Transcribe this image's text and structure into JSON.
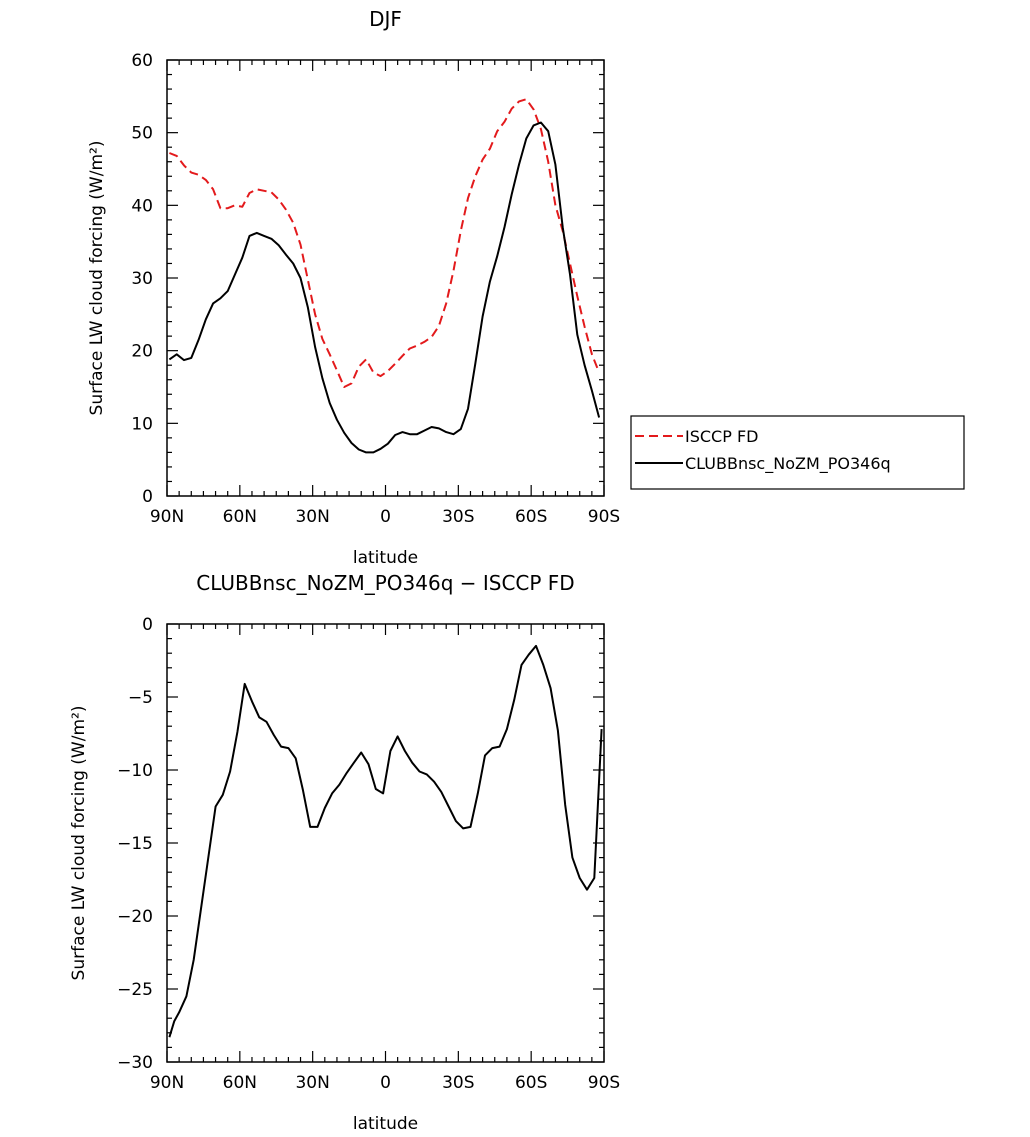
{
  "colors": {
    "observed": "#e31a1c",
    "model": "#000000",
    "axis": "#000000"
  },
  "chart_data": [
    {
      "type": "line",
      "title": "DJF",
      "xlabel": "latitude",
      "ylabel": "Surface LW cloud forcing (W/m²)",
      "xlim": [
        90,
        -90
      ],
      "ylim": [
        0,
        60
      ],
      "xticks": [
        90,
        60,
        30,
        0,
        -30,
        -60,
        -90
      ],
      "xtick_labels": [
        "90N",
        "60N",
        "30N",
        "0",
        "30S",
        "60S",
        "90S"
      ],
      "yticks": [
        0,
        10,
        20,
        30,
        40,
        50,
        60
      ],
      "ytick_labels": [
        "0",
        "10",
        "20",
        "30",
        "40",
        "50",
        "60"
      ],
      "legend_position": "right",
      "series": [
        {
          "name": "ISCCP FD",
          "color": "#e31a1c",
          "dash": "dashed",
          "x": [
            89,
            86,
            83,
            80,
            77,
            74,
            71,
            68,
            65,
            62,
            59,
            56,
            53,
            50,
            47,
            44,
            41,
            38,
            35,
            32,
            29,
            26,
            23,
            20,
            17,
            14,
            11,
            8,
            5,
            2,
            -1,
            -4,
            -7,
            -10,
            -13,
            -16,
            -19,
            -22,
            -25,
            -28,
            -31,
            -34,
            -37,
            -40,
            -43,
            -46,
            -49,
            -52,
            -55,
            -58,
            -61,
            -64,
            -67,
            -70,
            -73,
            -76,
            -79,
            -82,
            -85,
            -88
          ],
          "y": [
            47.2,
            46.8,
            45.5,
            44.5,
            44.2,
            43.5,
            42.2,
            39.6,
            39.6,
            40.0,
            39.8,
            41.7,
            42.2,
            42.0,
            41.8,
            40.8,
            39.4,
            37.6,
            34.6,
            29.8,
            25.0,
            21.6,
            19.5,
            17.3,
            15.0,
            15.5,
            17.8,
            18.8,
            17.0,
            16.5,
            17.2,
            18.2,
            19.3,
            20.3,
            20.7,
            21.2,
            21.9,
            23.4,
            26.5,
            31.0,
            36.5,
            41.0,
            44.0,
            46.3,
            47.8,
            50.2,
            51.5,
            53.3,
            54.3,
            54.6,
            53.2,
            50.5,
            46.0,
            40.0,
            36.5,
            32.0,
            27.5,
            23.3,
            19.5,
            17.0
          ]
        },
        {
          "name": "CLUBBnsc_NoZM_PO346q",
          "color": "#000000",
          "dash": "solid",
          "x": [
            89,
            86,
            83,
            80,
            77,
            74,
            71,
            68,
            65,
            62,
            59,
            56,
            53,
            50,
            47,
            44,
            41,
            38,
            35,
            32,
            29,
            26,
            23,
            20,
            17,
            14,
            11,
            8,
            5,
            2,
            -1,
            -4,
            -7,
            -10,
            -13,
            -16,
            -19,
            -22,
            -25,
            -28,
            -31,
            -34,
            -37,
            -40,
            -43,
            -46,
            -49,
            -52,
            -55,
            -58,
            -61,
            -64,
            -67,
            -70,
            -73,
            -76,
            -79,
            -82,
            -85,
            -88
          ],
          "y": [
            18.8,
            19.5,
            18.7,
            19.0,
            21.5,
            24.3,
            26.5,
            27.2,
            28.2,
            30.5,
            32.8,
            35.8,
            36.2,
            35.8,
            35.4,
            34.5,
            33.2,
            32.0,
            30.0,
            26.0,
            20.5,
            16.2,
            12.8,
            10.5,
            8.7,
            7.3,
            6.4,
            6.0,
            6.0,
            6.5,
            7.2,
            8.4,
            8.8,
            8.5,
            8.5,
            9.0,
            9.5,
            9.3,
            8.8,
            8.5,
            9.2,
            12.0,
            18.2,
            24.7,
            29.5,
            33.0,
            37.0,
            41.5,
            45.6,
            49.2,
            51.0,
            51.4,
            50.2,
            45.6,
            37.0,
            30.5,
            22.2,
            18.0,
            14.5,
            10.8
          ]
        }
      ]
    },
    {
      "type": "line",
      "title": "CLUBBnsc_NoZM_PO346q − ISCCP FD",
      "xlabel": "latitude",
      "ylabel": "Surface LW cloud forcing (W/m²)",
      "xlim": [
        90,
        -90
      ],
      "ylim": [
        -30,
        0
      ],
      "xticks": [
        90,
        60,
        30,
        0,
        -30,
        -60,
        -90
      ],
      "xtick_labels": [
        "90N",
        "60N",
        "30N",
        "0",
        "30S",
        "60S",
        "90S"
      ],
      "yticks": [
        0,
        -5,
        -10,
        -15,
        -20,
        -25,
        -30
      ],
      "ytick_labels": [
        "0",
        "−5",
        "−10",
        "−15",
        "−20",
        "−25",
        "−30"
      ],
      "series": [
        {
          "color": "#000000",
          "dash": "solid",
          "x": [
            89,
            87,
            85,
            82,
            79,
            76,
            73,
            70,
            67,
            64,
            61,
            58,
            55,
            52,
            49,
            46,
            43,
            40,
            37,
            34,
            31,
            28,
            25,
            22,
            19,
            16,
            13,
            10,
            7,
            4,
            1,
            -2,
            -5,
            -8,
            -11,
            -14,
            -17,
            -20,
            -23,
            -26,
            -29,
            -32,
            -35,
            -38,
            -41,
            -44,
            -47,
            -50,
            -53,
            -56,
            -59,
            -62,
            -65,
            -68,
            -71,
            -74,
            -77,
            -80,
            -83,
            -86,
            -89
          ],
          "y": [
            -28.3,
            -27.2,
            -26.6,
            -25.5,
            -23.0,
            -19.5,
            -16.0,
            -12.5,
            -11.7,
            -10.1,
            -7.4,
            -4.1,
            -5.3,
            -6.4,
            -6.7,
            -7.6,
            -8.4,
            -8.5,
            -9.2,
            -11.4,
            -13.9,
            -13.9,
            -12.6,
            -11.6,
            -11.0,
            -10.2,
            -9.5,
            -8.8,
            -9.6,
            -11.3,
            -11.6,
            -8.7,
            -7.7,
            -8.7,
            -9.5,
            -10.1,
            -10.3,
            -10.8,
            -11.5,
            -12.5,
            -13.5,
            -14.0,
            -13.9,
            -11.6,
            -9.0,
            -8.5,
            -8.4,
            -7.2,
            -5.2,
            -2.8,
            -2.1,
            -1.5,
            -2.8,
            -4.4,
            -7.3,
            -12.4,
            -16.0,
            -17.4,
            -18.2,
            -17.4,
            -7.2
          ]
        }
      ]
    }
  ]
}
